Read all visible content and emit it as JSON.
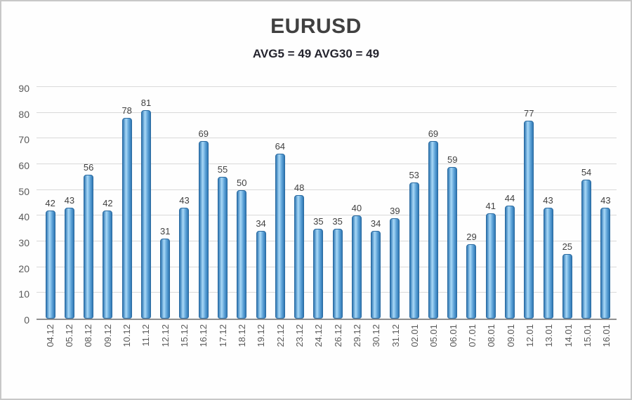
{
  "chart_data": {
    "type": "bar",
    "title": "EURUSD",
    "subtitle": "AVG5 = 49 AVG30 = 49",
    "categories": [
      "04.12",
      "05.12",
      "08.12",
      "09.12",
      "10.12",
      "11.12",
      "12.12",
      "15.12",
      "16.12",
      "17.12",
      "18.12",
      "19.12",
      "22.12",
      "23.12",
      "24.12",
      "26.12",
      "29.12",
      "30.12",
      "31.12",
      "02.01",
      "05.01",
      "06.01",
      "07.01",
      "08.01",
      "09.01",
      "12.01",
      "13.01",
      "14.01",
      "15.01",
      "16.01"
    ],
    "values": [
      42,
      43,
      56,
      42,
      78,
      81,
      31,
      43,
      69,
      55,
      50,
      34,
      64,
      48,
      35,
      35,
      40,
      34,
      39,
      53,
      69,
      59,
      29,
      41,
      44,
      77,
      43,
      25,
      54,
      43
    ],
    "xlabel": "",
    "ylabel": "",
    "ylim": [
      0,
      90
    ],
    "ytick_step": 10,
    "grid": true,
    "legend": "none",
    "colors": {
      "title": "#404040",
      "subtitle": "#24242e",
      "bar_light": "#a9d9f7",
      "bar_mid": "#5ea3d8",
      "bar_dark": "#3078b4",
      "bar_border": "#2a6aa0",
      "grid": "#d9d9d9",
      "axis": "#8f8f8f",
      "tick": "#595959",
      "value_label": "#404040",
      "frame_border": "#c8c8c8"
    }
  }
}
